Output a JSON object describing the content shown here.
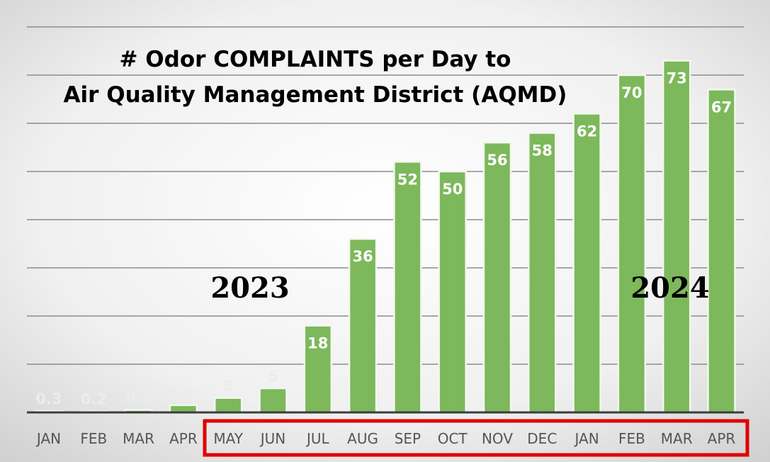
{
  "chart_data": {
    "type": "bar",
    "title_lines": [
      "# Odor COMPLAINTS per Day to",
      "Air Quality Management District (AQMD)"
    ],
    "categories": [
      "JAN",
      "FEB",
      "MAR",
      "APR",
      "MAY",
      "JUN",
      "JUL",
      "AUG",
      "SEP",
      "OCT",
      "NOV",
      "DEC",
      "JAN",
      "FEB",
      "MAR",
      "APR"
    ],
    "values": [
      0.3,
      0.2,
      0.5,
      1.5,
      3,
      5,
      18,
      36,
      52,
      50,
      56,
      58,
      62,
      70,
      73,
      67
    ],
    "data_labels": [
      "0.3",
      "0.2",
      "0.5",
      "1.5",
      "3",
      "5",
      "18",
      "36",
      "52",
      "50",
      "56",
      "58",
      "62",
      "70",
      "73",
      "67"
    ],
    "year_labels": [
      "2023",
      "2024"
    ],
    "highlighted_range": [
      "MAY",
      "APR"
    ],
    "ylim": [
      0,
      80
    ],
    "grid": true,
    "legend": "none",
    "colors": {
      "bar": "#7db85c",
      "bar_edge": "#f2f8ee",
      "highlight_box": "#e00000",
      "label_inside": "#ffffff",
      "label_outside": "#ececec",
      "gridline": "#8c8c8c"
    }
  }
}
